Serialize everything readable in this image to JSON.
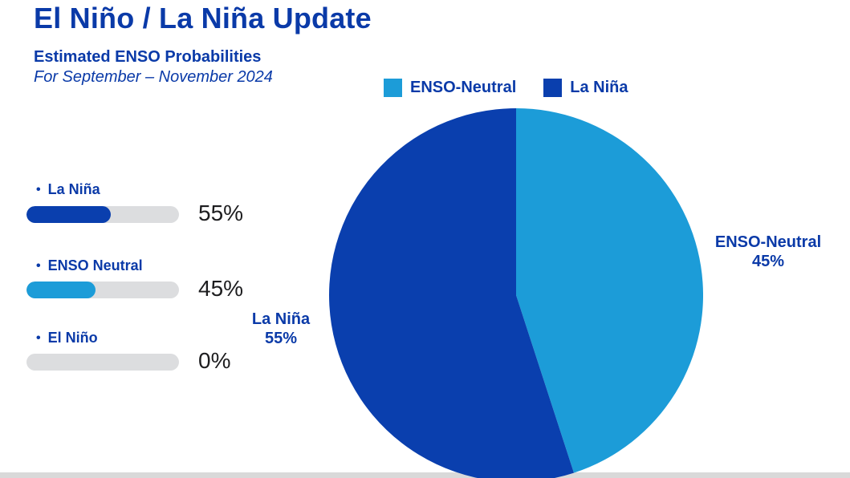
{
  "header": {
    "title": "El Niño / La Niña Update",
    "subtitle": "Estimated ENSO Probabilities",
    "period": "For September – November 2024"
  },
  "bars": [
    {
      "bullet": "•",
      "label": "La Niña",
      "value": 55,
      "value_label": "55%",
      "color": "#0a3fae"
    },
    {
      "bullet": "•",
      "label": "ENSO Neutral",
      "value": 45,
      "value_label": "45%",
      "color": "#1c9cd8"
    },
    {
      "bullet": "•",
      "label": "El Niño",
      "value": 0,
      "value_label": "0%",
      "color": "#0a3fae"
    }
  ],
  "legend": [
    {
      "label": "ENSO-Neutral",
      "color": "#1c9cd8"
    },
    {
      "label": "La Niña",
      "color": "#0a3fae"
    }
  ],
  "pie_labels": {
    "left": {
      "name": "La Niña",
      "value": "55%"
    },
    "right": {
      "name": "ENSO-Neutral",
      "value": "45%"
    }
  },
  "colors": {
    "text_dark_blue": "#0a3aa8",
    "bar_track": "#dcdddf",
    "value_text": "#1d1d1f",
    "background": "#ffffff"
  },
  "chart_data": [
    {
      "type": "bar",
      "title": "Estimated ENSO Probabilities",
      "subtitle": "For September – November 2024",
      "orientation": "horizontal",
      "categories": [
        "La Niña",
        "ENSO Neutral",
        "El Niño"
      ],
      "values": [
        55,
        45,
        0
      ],
      "unit": "%",
      "xlim": [
        0,
        100
      ],
      "bar_colors": [
        "#0a3fae",
        "#1c9cd8",
        "#0a3fae"
      ]
    },
    {
      "type": "pie",
      "labels": [
        "ENSO-Neutral",
        "La Niña"
      ],
      "values": [
        45,
        55
      ],
      "colors": [
        "#1c9cd8",
        "#0a3fae"
      ],
      "start_angle": "top",
      "direction": "clockwise",
      "legend_position": "top",
      "data_labels": [
        "ENSO-Neutral 45%",
        "La Niña 55%"
      ]
    }
  ]
}
